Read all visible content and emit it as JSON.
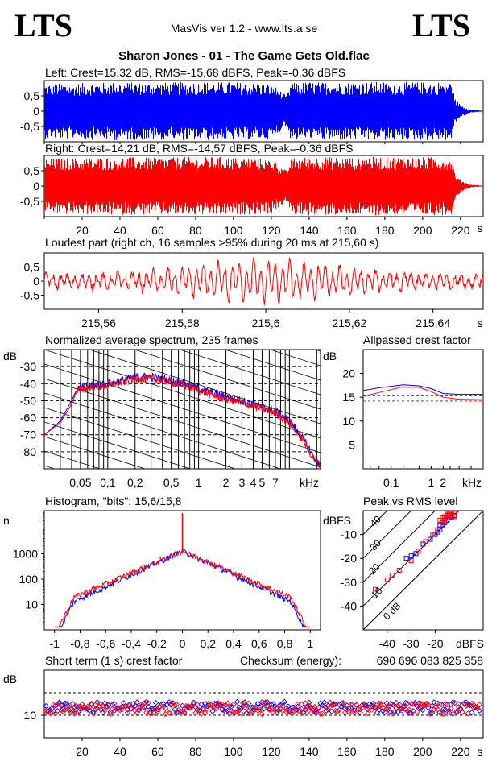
{
  "header": {
    "logo_left": "LTS",
    "logo_right": "LTS",
    "app_title": "MasVis ver 1.2 - www.lts.a.se",
    "file_title": "Sharon Jones - 01 - The Game Gets Old.flac"
  },
  "colors": {
    "left": "#0000ff",
    "right": "#ff0000",
    "axis": "#000000"
  },
  "chart_data": [
    {
      "type": "area",
      "id": "left",
      "title": "Left: Crest=15,32 dB, RMS=-15,68 dBFS, Peak=-0,36 dBFS",
      "y_ticks": [
        "0,5",
        "0",
        "-0,5"
      ],
      "ylim": [
        -1,
        1
      ],
      "xlim": [
        0,
        232
      ],
      "envelope": [
        [
          0,
          0.9
        ],
        [
          20,
          0.92
        ],
        [
          40,
          0.95
        ],
        [
          60,
          0.93
        ],
        [
          80,
          0.96
        ],
        [
          100,
          0.95
        ],
        [
          120,
          0.9
        ],
        [
          128,
          0.5
        ],
        [
          130,
          0.92
        ],
        [
          140,
          0.96
        ],
        [
          160,
          0.95
        ],
        [
          180,
          0.96
        ],
        [
          200,
          0.95
        ],
        [
          215,
          0.96
        ],
        [
          217,
          0.4
        ],
        [
          220,
          0.2
        ],
        [
          225,
          0.05
        ],
        [
          232,
          0.01
        ]
      ]
    },
    {
      "type": "area",
      "id": "right",
      "title": "Right: Crest=14,21 dB, RMS=-14,57 dBFS, Peak=-0,36 dBFS",
      "y_ticks": [
        "0,5",
        "0",
        "-0,5"
      ],
      "ylim": [
        -1,
        1
      ],
      "xlim": [
        0,
        232
      ],
      "x_ticks": [
        20,
        40,
        60,
        80,
        100,
        120,
        140,
        160,
        180,
        200,
        220
      ],
      "x_unit": "s",
      "envelope": [
        [
          0,
          0.9
        ],
        [
          20,
          0.92
        ],
        [
          40,
          0.95
        ],
        [
          60,
          0.93
        ],
        [
          80,
          0.96
        ],
        [
          100,
          0.95
        ],
        [
          120,
          0.9
        ],
        [
          128,
          0.5
        ],
        [
          130,
          0.92
        ],
        [
          140,
          0.96
        ],
        [
          160,
          0.95
        ],
        [
          180,
          0.96
        ],
        [
          200,
          0.95
        ],
        [
          215,
          0.96
        ],
        [
          217,
          0.4
        ],
        [
          220,
          0.2
        ],
        [
          225,
          0.05
        ],
        [
          232,
          0.01
        ]
      ]
    },
    {
      "type": "line",
      "id": "loudest",
      "title": "Loudest part (right ch, 16 samples >95% during 20 ms at 215,60 s)",
      "y_ticks": [
        "0,5",
        "0",
        "-0,5"
      ],
      "ylim": [
        -1,
        1
      ],
      "xlim": [
        215.547,
        215.652
      ],
      "x_ticks": [
        "215,56",
        "215,58",
        "215,6",
        "215,62",
        "215,64"
      ],
      "x_tick_values": [
        215.56,
        215.58,
        215.6,
        215.62,
        215.64
      ],
      "x_unit": "s"
    },
    {
      "type": "line",
      "id": "spectrum",
      "title": "Normalized average spectrum, 235 frames",
      "ylabel": "dB",
      "y_ticks": [
        -30,
        -40,
        -50,
        -60,
        -70,
        -80
      ],
      "ylim": [
        -90,
        -20
      ],
      "x_tick_labels": [
        "0,05",
        "0,1",
        "0,2",
        "0,5",
        "1",
        "2",
        "3",
        "4",
        "5",
        "7",
        "kHz"
      ],
      "x_tick_values": [
        0.05,
        0.1,
        0.2,
        0.5,
        1,
        2,
        3,
        4,
        5,
        7
      ],
      "xlim": [
        0.02,
        22
      ],
      "series": [
        {
          "points": [
            [
              0.02,
              -70
            ],
            [
              0.03,
              -62
            ],
            [
              0.04,
              -50
            ],
            [
              0.045,
              -44
            ],
            [
              0.05,
              -42
            ],
            [
              0.07,
              -41
            ],
            [
              0.1,
              -40
            ],
            [
              0.15,
              -38
            ],
            [
              0.2,
              -36
            ],
            [
              0.3,
              -36
            ],
            [
              0.5,
              -38
            ],
            [
              0.7,
              -40
            ],
            [
              1,
              -43
            ],
            [
              1.5,
              -46
            ],
            [
              2,
              -48
            ],
            [
              3,
              -50
            ],
            [
              4,
              -52
            ],
            [
              5,
              -54
            ],
            [
              7,
              -56
            ],
            [
              10,
              -62
            ],
            [
              14,
              -72
            ],
            [
              18,
              -82
            ],
            [
              22,
              -88
            ]
          ]
        },
        {
          "points": [
            [
              0.02,
              -70
            ],
            [
              0.03,
              -63
            ],
            [
              0.04,
              -52
            ],
            [
              0.045,
              -45
            ],
            [
              0.05,
              -43
            ],
            [
              0.07,
              -42
            ],
            [
              0.1,
              -41
            ],
            [
              0.15,
              -39
            ],
            [
              0.2,
              -37
            ],
            [
              0.3,
              -37
            ],
            [
              0.5,
              -39
            ],
            [
              0.7,
              -41
            ],
            [
              1,
              -44
            ],
            [
              1.5,
              -47
            ],
            [
              2,
              -49
            ],
            [
              3,
              -51
            ],
            [
              4,
              -53
            ],
            [
              5,
              -55
            ],
            [
              7,
              -57
            ],
            [
              10,
              -63
            ],
            [
              14,
              -73
            ],
            [
              18,
              -83
            ],
            [
              22,
              -88
            ]
          ]
        }
      ]
    },
    {
      "type": "line",
      "id": "allpass",
      "title": "Allpassed crest factor",
      "ylabel": "dB",
      "y_ticks": [
        20,
        15,
        10,
        5
      ],
      "ylim": [
        0,
        25
      ],
      "x_tick_labels": [
        "0,1",
        "1",
        "2",
        "kHz"
      ],
      "x_tick_values": [
        0.1,
        1,
        2
      ],
      "xlim": [
        0.02,
        20
      ],
      "series": [
        {
          "points": [
            [
              0.02,
              16.4
            ],
            [
              0.05,
              17
            ],
            [
              0.1,
              17.3
            ],
            [
              0.2,
              17.6
            ],
            [
              0.5,
              17.4
            ],
            [
              1,
              16.8
            ],
            [
              2,
              15.8
            ],
            [
              5,
              15.6
            ],
            [
              20,
              15.6
            ]
          ],
          "dashed_level": 15.32
        },
        {
          "points": [
            [
              0.02,
              15.2
            ],
            [
              0.05,
              16
            ],
            [
              0.1,
              16.6
            ],
            [
              0.2,
              17.2
            ],
            [
              0.5,
              17.1
            ],
            [
              1,
              16.2
            ],
            [
              2,
              15
            ],
            [
              5,
              14.6
            ],
            [
              20,
              14.5
            ]
          ],
          "dashed_level": 14.21
        }
      ]
    },
    {
      "type": "line",
      "id": "histogram",
      "title": "Histogram, \"bits\": 15,6/15,8",
      "ylabel": "n",
      "y_ticks": [
        "1000",
        "100",
        "10"
      ],
      "y_tick_values": [
        1000,
        100,
        10
      ],
      "ylim": [
        1,
        50000
      ],
      "x_ticks": [
        "-1",
        "-0,8",
        "-0,6",
        "-0,4",
        "-0,2",
        "0",
        "0,2",
        "0,4",
        "0,6",
        "0,8",
        "1"
      ],
      "x_tick_values": [
        -1,
        -0.8,
        -0.6,
        -0.4,
        -0.2,
        0,
        0.2,
        0.4,
        0.6,
        0.8,
        1
      ],
      "xlim": [
        -1.08,
        1.08
      ]
    },
    {
      "type": "scatter",
      "id": "peak_vs_rms",
      "title": "Peak vs RMS level",
      "ylabel": "dBFS",
      "xlabel": "dBFS",
      "y_ticks": [
        -10,
        -20,
        -30,
        -40
      ],
      "x_ticks": [
        -40,
        -30,
        -20
      ],
      "xlim": [
        -50,
        0
      ],
      "ylim": [
        -50,
        0
      ],
      "diagonals": [
        "40",
        "30",
        "20",
        "10",
        "0 dB"
      ],
      "left_points": [
        [
          -32,
          -20
        ],
        [
          -30,
          -19
        ],
        [
          -28,
          -18
        ],
        [
          -25,
          -14
        ],
        [
          -22,
          -12
        ],
        [
          -20,
          -10
        ],
        [
          -19,
          -9
        ],
        [
          -18,
          -8
        ],
        [
          -17,
          -6
        ],
        [
          -16,
          -5
        ],
        [
          -15,
          -4
        ],
        [
          -14,
          -3
        ],
        [
          -13,
          -2.5
        ],
        [
          -12,
          -2
        ],
        [
          -16,
          -3
        ],
        [
          -15,
          -2
        ],
        [
          -14,
          -1.5
        ],
        [
          -18,
          -6
        ],
        [
          -17,
          -4
        ]
      ],
      "right_points": [
        [
          -45,
          -33
        ],
        [
          -40,
          -29
        ],
        [
          -38,
          -27
        ],
        [
          -35,
          -25
        ],
        [
          -30,
          -21
        ],
        [
          -27,
          -17
        ],
        [
          -24,
          -13
        ],
        [
          -21,
          -10
        ],
        [
          -19,
          -8
        ],
        [
          -17,
          -5
        ],
        [
          -16,
          -4
        ],
        [
          -15,
          -3
        ],
        [
          -14,
          -2
        ],
        [
          -13,
          -1.5
        ],
        [
          -12,
          -1
        ],
        [
          -16,
          -2.5
        ],
        [
          -15,
          -1.5
        ],
        [
          -14,
          -1
        ],
        [
          -18,
          -4
        ],
        [
          -17,
          -3
        ],
        [
          -13,
          -3
        ],
        [
          -12,
          -2.5
        ]
      ]
    },
    {
      "type": "scatter",
      "id": "short_term_crest",
      "title": "Short term (1 s) crest factor",
      "checksum_label": "Checksum (energy):",
      "checksum_value": "690 696 083 825 358",
      "ylabel": "dB",
      "y_ticks": [
        "10"
      ],
      "y_tick_values": [
        10
      ],
      "ylim": [
        0,
        30
      ],
      "dashed_levels": [
        10,
        20
      ],
      "x_ticks": [
        20,
        40,
        60,
        80,
        100,
        120,
        140,
        160,
        180,
        200,
        220
      ],
      "x_unit": "s",
      "xlim": [
        0,
        232
      ]
    }
  ]
}
